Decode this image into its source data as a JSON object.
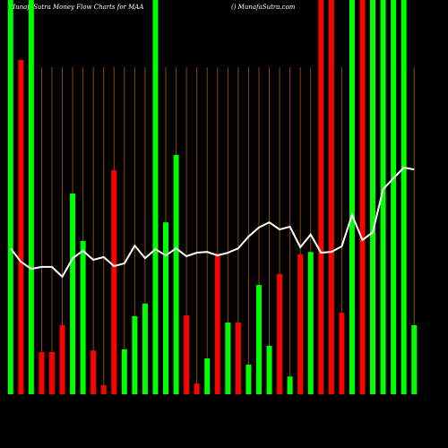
{
  "chart_data": {
    "type": "bar",
    "title": "MunafaSutra  Money Flow  Charts for MAA",
    "subtitle": "() MunafaSutra.com",
    "categories": [
      null,
      null,
      null,
      null,
      null,
      null,
      null,
      null,
      null,
      null,
      null,
      null,
      null,
      null,
      null,
      null,
      null,
      null,
      null,
      null,
      null,
      null,
      null,
      null,
      null,
      null,
      null,
      null,
      null,
      null,
      null,
      null,
      null,
      null,
      null,
      null,
      null,
      null,
      null,
      null
    ],
    "series": [
      {
        "colors": [
          "#00ff00",
          "#ff0000",
          "#00ff00",
          "#ff0000",
          "#ff0000",
          "#ff0000",
          "#00ff00",
          "#00ff00",
          "#ff0000",
          "#ff0000",
          "#ff0000",
          "#00ff00",
          "#00ff00",
          "#00ff00",
          "#00ff00",
          "#00ff00",
          "#00ff00",
          "#ff0000",
          "#ff0000",
          "#00ff00",
          "#ff0000",
          "#00ff00",
          "#ff0000",
          "#00ff00",
          "#00ff00",
          "#00ff00",
          "#ff0000",
          "#00ff00",
          "#ff0000",
          "#00ff00",
          "#ff0000",
          "#ff0000",
          "#ff0000",
          "#00ff00",
          "#ff0000",
          "#00ff00",
          "#00ff00",
          "#00ff00",
          "#00ff00",
          "#00ff00"
        ],
        "values": [
          100,
          84.8,
          100,
          10.7,
          10.7,
          17.5,
          50.9,
          38.9,
          11.1,
          2.3,
          56.8,
          11.4,
          19.8,
          23.0,
          100,
          43.6,
          60.7,
          20.0,
          2.7,
          9.1,
          35.7,
          18.2,
          18.2,
          7.5,
          27.7,
          12.3,
          30.5,
          4.5,
          35.5,
          36.1,
          100,
          100,
          20.7,
          100,
          100,
          100,
          100,
          100,
          100,
          17.5
        ]
      },
      {
        "type": "line",
        "color": "#ffffff",
        "values": [
          37.0,
          33.6,
          31.8,
          32.3,
          32.3,
          29.8,
          34.5,
          36.4,
          34.1,
          34.8,
          32.5,
          33.2,
          37.7,
          34.5,
          36.8,
          35.2,
          37.0,
          35.0,
          35.9,
          36.1,
          35.2,
          35.9,
          37.0,
          40.0,
          42.3,
          43.6,
          41.8,
          42.5,
          37.3,
          40.5,
          35.9,
          36.1,
          37.5,
          45.5,
          39.1,
          41.1,
          52.0,
          54.8,
          57.5,
          57.0
        ]
      }
    ],
    "ylim": [
      0,
      100
    ],
    "grid_color": "#8a4a00"
  }
}
